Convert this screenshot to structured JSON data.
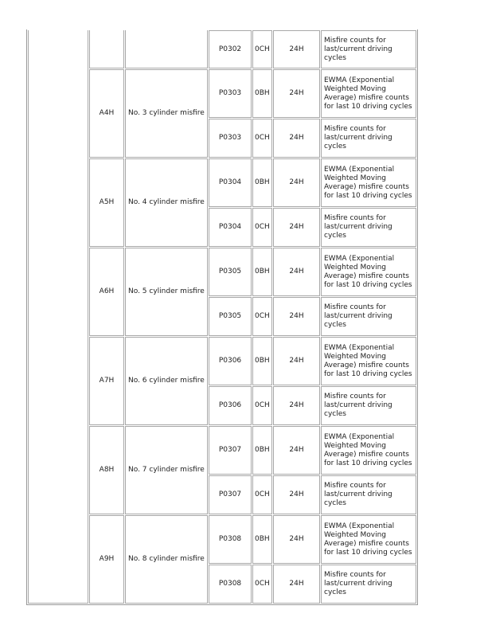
{
  "first_row": {
    "dtc": "P0302",
    "tid": "0CH",
    "unit": "24H",
    "description": "Misfire counts for last/current driving cycles"
  },
  "groups": [
    {
      "mid": "A4H",
      "name": "No. 3 cylinder misfire",
      "dtc": "P0303"
    },
    {
      "mid": "A5H",
      "name": "No. 4 cylinder misfire",
      "dtc": "P0304"
    },
    {
      "mid": "A6H",
      "name": "No. 5 cylinder misfire",
      "dtc": "P0305"
    },
    {
      "mid": "A7H",
      "name": "No. 6 cylinder misfire",
      "dtc": "P0306"
    },
    {
      "mid": "A8H",
      "name": "No. 7 cylinder misfire",
      "dtc": "P0307"
    },
    {
      "mid": "A9H",
      "name": "No. 8 cylinder misfire",
      "dtc": "P0308"
    }
  ],
  "rows": {
    "ewma": {
      "tid": "0BH",
      "unit": "24H",
      "description": "EWMA (Exponential Weighted Moving Average) misfire counts for last 10 driving cycles"
    },
    "misfire": {
      "tid": "0CH",
      "unit": "24H",
      "description": "Misfire counts for last/current driving cycles"
    }
  }
}
